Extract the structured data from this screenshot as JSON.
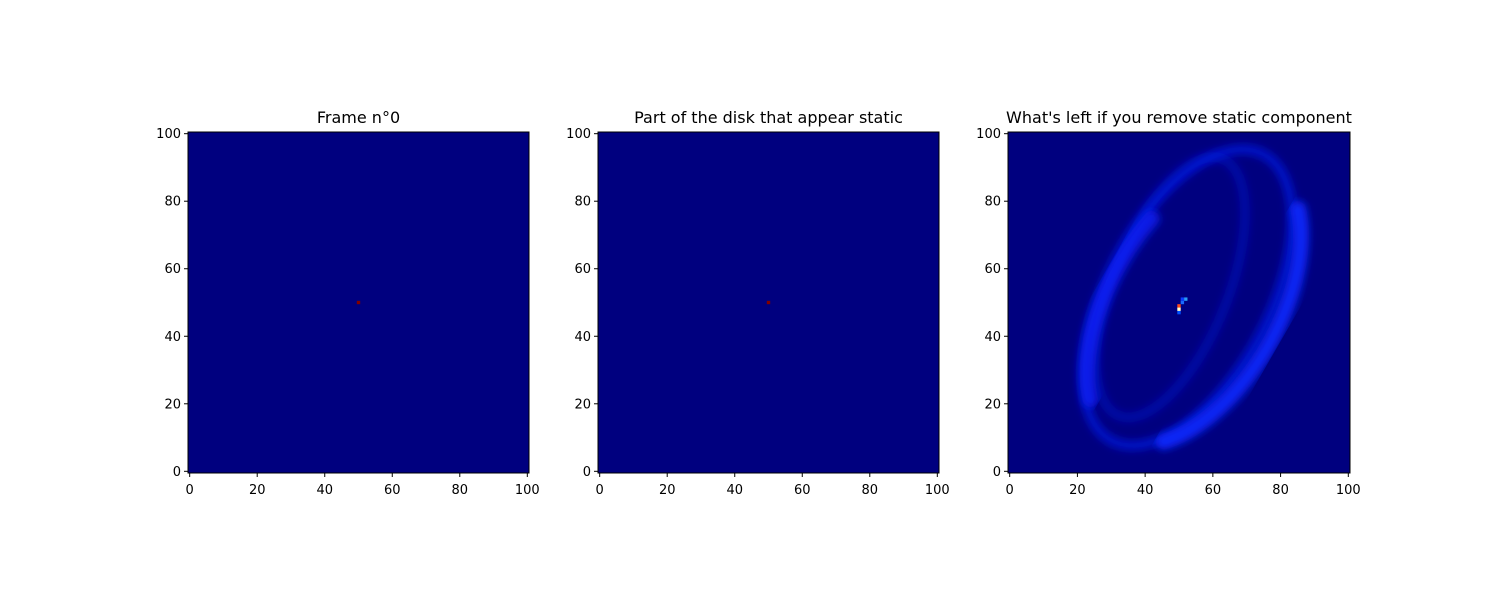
{
  "chart_data": [
    {
      "type": "heatmap",
      "title": "Frame n°0",
      "xlim": [
        0,
        101
      ],
      "ylim": [
        0,
        101
      ],
      "xticks": [
        0,
        20,
        40,
        60,
        80,
        100
      ],
      "yticks": [
        0,
        20,
        40,
        60,
        80,
        100
      ],
      "colormap": "jet",
      "background_color": "#00007f",
      "hot_pixels": [
        {
          "x": 50,
          "y": 50,
          "color": "#7f0000"
        }
      ]
    },
    {
      "type": "heatmap",
      "title": "Part of the disk that appear static",
      "xlim": [
        0,
        101
      ],
      "ylim": [
        0,
        101
      ],
      "xticks": [
        0,
        20,
        40,
        60,
        80,
        100
      ],
      "yticks": [
        0,
        20,
        40,
        60,
        80,
        100
      ],
      "colormap": "jet",
      "background_color": "#00007f",
      "hot_pixels": [
        {
          "x": 50,
          "y": 50,
          "color": "#7f0000"
        }
      ]
    },
    {
      "type": "heatmap",
      "title": "What's left if you remove static component",
      "xlim": [
        0,
        101
      ],
      "ylim": [
        0,
        101
      ],
      "xticks": [
        0,
        20,
        40,
        60,
        80,
        100
      ],
      "yticks": [
        0,
        20,
        40,
        60,
        80,
        100
      ],
      "colormap": "jet",
      "background_color": "#00007f",
      "hot_pixels": [
        {
          "x": 52,
          "y": 51,
          "color": "#2a9df4"
        },
        {
          "x": 51,
          "y": 51,
          "color": "#0a3dff"
        },
        {
          "x": 50,
          "y": 49,
          "color": "#ff4a1a"
        },
        {
          "x": 50,
          "y": 48,
          "color": "#ffffd0"
        },
        {
          "x": 51,
          "y": 50,
          "color": "#1a6aff"
        },
        {
          "x": 50,
          "y": 47,
          "color": "#0050ff"
        }
      ],
      "features": [
        {
          "shape": "elliptical-ring",
          "center": [
            53,
            52
          ],
          "radii": [
            24,
            48
          ],
          "rotation_deg": 28,
          "color": "#0a1cff",
          "intensity": 0.55
        },
        {
          "shape": "elliptical-ring",
          "center": [
            48,
            55
          ],
          "radii": [
            17,
            41
          ],
          "rotation_deg": 22,
          "color": "#0a16ee",
          "intensity": 0.35
        },
        {
          "shape": "arc",
          "center": [
            55,
            50
          ],
          "radii": [
            25,
            46
          ],
          "rotation_deg": 30,
          "arc_deg": [
            300,
            420
          ],
          "color": "#0a28ff",
          "intensity": 0.9
        },
        {
          "shape": "arc",
          "center": [
            55,
            50
          ],
          "radii": [
            25,
            46
          ],
          "rotation_deg": 30,
          "arc_deg": [
            120,
            200
          ],
          "color": "#0a24ff",
          "intensity": 0.75
        }
      ]
    }
  ]
}
